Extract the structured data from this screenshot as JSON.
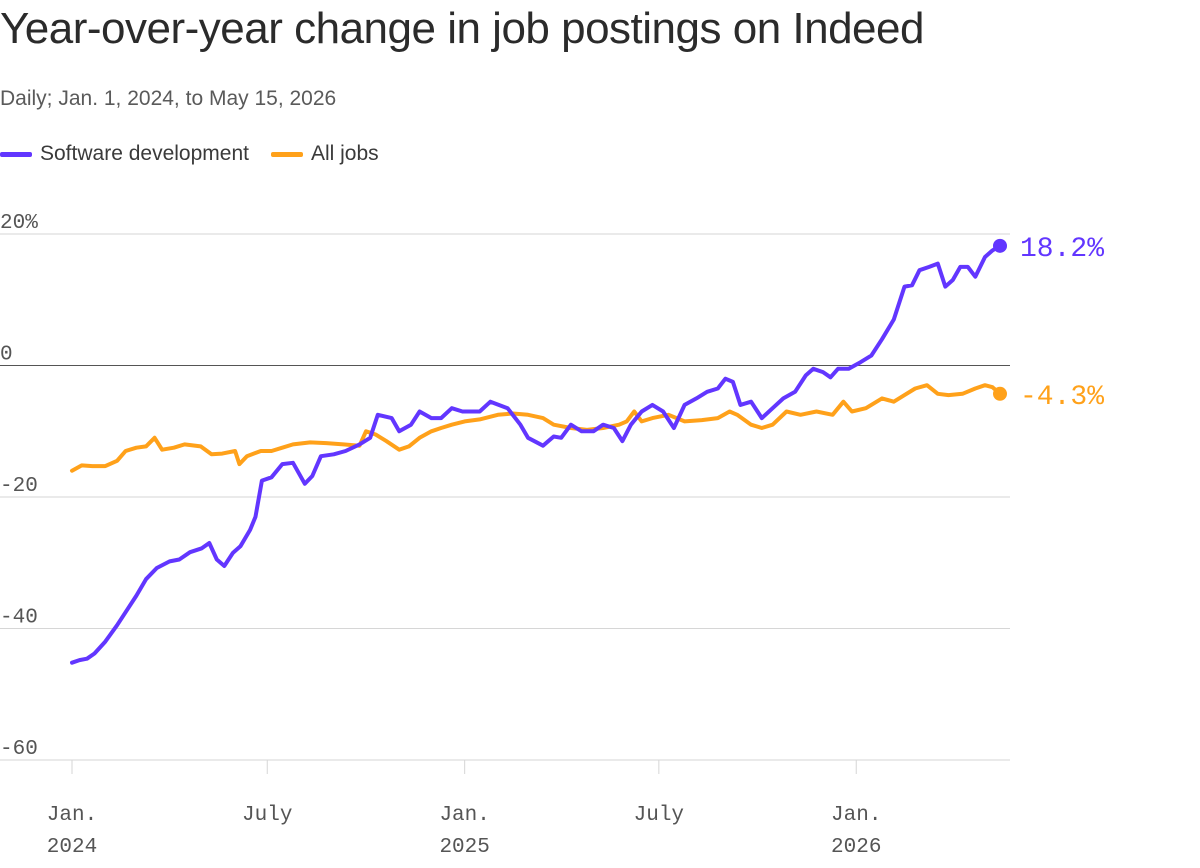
{
  "title": "Year-over-year change in job postings on Indeed",
  "subtitle": "Daily; Jan. 1, 2024, to May 15, 2026",
  "colors": {
    "software": "#6236ff",
    "all": "#ffa11a",
    "grid": "#d6d6d6",
    "zero": "#555555"
  },
  "chart_data": {
    "type": "line",
    "xlabel": "",
    "ylabel": "",
    "ylim": [
      -60,
      20
    ],
    "xlim": [
      "2024-01-01",
      "2026-05-15"
    ],
    "grid": true,
    "legend_position": "top-left",
    "y_ticks": [
      {
        "value": 20,
        "label": "20%"
      },
      {
        "value": 0,
        "label": "0"
      },
      {
        "value": -20,
        "label": "-20"
      },
      {
        "value": -40,
        "label": "-40"
      },
      {
        "value": -60,
        "label": "-60"
      }
    ],
    "x_ticks": [
      {
        "date": "2024-01-01",
        "line1": "Jan.",
        "line2": "2024"
      },
      {
        "date": "2024-07-01",
        "line1": "July",
        "line2": ""
      },
      {
        "date": "2025-01-01",
        "line1": "Jan.",
        "line2": "2025"
      },
      {
        "date": "2025-07-01",
        "line1": "July",
        "line2": ""
      },
      {
        "date": "2026-01-01",
        "line1": "Jan.",
        "line2": "2026"
      }
    ],
    "series": [
      {
        "name": "Software development",
        "end_label": "18.2%",
        "points": [
          [
            "2024-01-01",
            -45.2
          ],
          [
            "2024-01-08",
            -44.8
          ],
          [
            "2024-01-15",
            -44.6
          ],
          [
            "2024-01-22",
            -43.8
          ],
          [
            "2024-02-01",
            -42.0
          ],
          [
            "2024-02-12",
            -39.5
          ],
          [
            "2024-02-22",
            -37.0
          ],
          [
            "2024-03-01",
            -35.0
          ],
          [
            "2024-03-10",
            -32.5
          ],
          [
            "2024-03-20",
            -30.8
          ],
          [
            "2024-04-01",
            -29.8
          ],
          [
            "2024-04-10",
            -29.5
          ],
          [
            "2024-04-20",
            -28.4
          ],
          [
            "2024-05-01",
            -27.8
          ],
          [
            "2024-05-08",
            -27.0
          ],
          [
            "2024-05-15",
            -29.5
          ],
          [
            "2024-05-22",
            -30.5
          ],
          [
            "2024-05-30",
            -28.5
          ],
          [
            "2024-06-06",
            -27.5
          ],
          [
            "2024-06-15",
            -25.0
          ],
          [
            "2024-06-20",
            -23.0
          ],
          [
            "2024-06-26",
            -17.5
          ],
          [
            "2024-07-05",
            -17.0
          ],
          [
            "2024-07-15",
            -15.0
          ],
          [
            "2024-07-25",
            -14.8
          ],
          [
            "2024-08-05",
            -18.0
          ],
          [
            "2024-08-12",
            -16.8
          ],
          [
            "2024-08-20",
            -13.8
          ],
          [
            "2024-09-01",
            -13.5
          ],
          [
            "2024-09-12",
            -13.0
          ],
          [
            "2024-09-25",
            -12.0
          ],
          [
            "2024-10-05",
            -11.0
          ],
          [
            "2024-10-12",
            -7.5
          ],
          [
            "2024-10-25",
            -8.0
          ],
          [
            "2024-11-01",
            -10.0
          ],
          [
            "2024-11-12",
            -9.0
          ],
          [
            "2024-11-20",
            -7.0
          ],
          [
            "2024-12-01",
            -8.0
          ],
          [
            "2024-12-10",
            -8.0
          ],
          [
            "2024-12-20",
            -6.5
          ],
          [
            "2024-12-30",
            -7.0
          ],
          [
            "2025-01-15",
            -7.0
          ],
          [
            "2025-01-25",
            -5.5
          ],
          [
            "2025-02-10",
            -6.5
          ],
          [
            "2025-02-22",
            -9.0
          ],
          [
            "2025-03-01",
            -11.0
          ],
          [
            "2025-03-15",
            -12.2
          ],
          [
            "2025-03-25",
            -10.8
          ],
          [
            "2025-04-01",
            -11.0
          ],
          [
            "2025-04-10",
            -9.0
          ],
          [
            "2025-04-20",
            -10.0
          ],
          [
            "2025-05-01",
            -10.0
          ],
          [
            "2025-05-10",
            -9.0
          ],
          [
            "2025-05-20",
            -9.5
          ],
          [
            "2025-05-28",
            -11.5
          ],
          [
            "2025-06-05",
            -9.0
          ],
          [
            "2025-06-15",
            -7.0
          ],
          [
            "2025-06-25",
            -6.0
          ],
          [
            "2025-07-05",
            -7.0
          ],
          [
            "2025-07-15",
            -9.5
          ],
          [
            "2025-07-25",
            -6.0
          ],
          [
            "2025-08-05",
            -5.0
          ],
          [
            "2025-08-15",
            -4.0
          ],
          [
            "2025-08-25",
            -3.5
          ],
          [
            "2025-09-01",
            -2.0
          ],
          [
            "2025-09-08",
            -2.5
          ],
          [
            "2025-09-15",
            -6.0
          ],
          [
            "2025-09-25",
            -5.5
          ],
          [
            "2025-10-05",
            -8.0
          ],
          [
            "2025-10-15",
            -6.5
          ],
          [
            "2025-10-25",
            -5.0
          ],
          [
            "2025-11-05",
            -4.0
          ],
          [
            "2025-11-15",
            -1.5
          ],
          [
            "2025-11-22",
            -0.5
          ],
          [
            "2025-12-01",
            -1.0
          ],
          [
            "2025-12-08",
            -1.8
          ],
          [
            "2025-12-15",
            -0.5
          ],
          [
            "2025-12-25",
            -0.5
          ],
          [
            "2026-01-05",
            0.5
          ],
          [
            "2026-01-15",
            1.5
          ],
          [
            "2026-01-25",
            4.0
          ],
          [
            "2026-02-05",
            7.0
          ],
          [
            "2026-02-15",
            12.0
          ],
          [
            "2026-02-22",
            12.2
          ],
          [
            "2026-03-01",
            14.5
          ],
          [
            "2026-03-10",
            15.0
          ],
          [
            "2026-03-18",
            15.5
          ],
          [
            "2026-03-25",
            12.0
          ],
          [
            "2026-04-01",
            13.0
          ],
          [
            "2026-04-08",
            15.0
          ],
          [
            "2026-04-15",
            15.0
          ],
          [
            "2026-04-22",
            13.5
          ],
          [
            "2026-05-01",
            16.5
          ],
          [
            "2026-05-08",
            17.5
          ],
          [
            "2026-05-15",
            18.2
          ]
        ]
      },
      {
        "name": "All jobs",
        "end_label": "-4.3%",
        "points": [
          [
            "2024-01-01",
            -16.0
          ],
          [
            "2024-01-10",
            -15.2
          ],
          [
            "2024-01-20",
            -15.3
          ],
          [
            "2024-02-01",
            -15.3
          ],
          [
            "2024-02-12",
            -14.5
          ],
          [
            "2024-02-20",
            -13.0
          ],
          [
            "2024-03-01",
            -12.5
          ],
          [
            "2024-03-10",
            -12.3
          ],
          [
            "2024-03-18",
            -11.0
          ],
          [
            "2024-03-25",
            -12.8
          ],
          [
            "2024-04-05",
            -12.5
          ],
          [
            "2024-04-15",
            -12.0
          ],
          [
            "2024-04-30",
            -12.3
          ],
          [
            "2024-05-10",
            -13.5
          ],
          [
            "2024-05-20",
            -13.4
          ],
          [
            "2024-06-01",
            -13.0
          ],
          [
            "2024-06-05",
            -15.0
          ],
          [
            "2024-06-12",
            -13.8
          ],
          [
            "2024-06-25",
            -13.0
          ],
          [
            "2024-07-05",
            -13.0
          ],
          [
            "2024-07-15",
            -12.5
          ],
          [
            "2024-07-25",
            -12.0
          ],
          [
            "2024-08-10",
            -11.7
          ],
          [
            "2024-08-25",
            -11.8
          ],
          [
            "2024-09-10",
            -12.0
          ],
          [
            "2024-09-25",
            -12.2
          ],
          [
            "2024-10-01",
            -10.0
          ],
          [
            "2024-10-10",
            -10.5
          ],
          [
            "2024-10-20",
            -11.5
          ],
          [
            "2024-11-01",
            -12.8
          ],
          [
            "2024-11-10",
            -12.3
          ],
          [
            "2024-11-20",
            -11.0
          ],
          [
            "2024-12-01",
            -10.0
          ],
          [
            "2024-12-10",
            -9.5
          ],
          [
            "2024-12-20",
            -9.0
          ],
          [
            "2025-01-01",
            -8.5
          ],
          [
            "2025-01-15",
            -8.2
          ],
          [
            "2025-02-01",
            -7.5
          ],
          [
            "2025-02-15",
            -7.3
          ],
          [
            "2025-03-01",
            -7.5
          ],
          [
            "2025-03-15",
            -8.0
          ],
          [
            "2025-03-25",
            -9.0
          ],
          [
            "2025-04-10",
            -9.5
          ],
          [
            "2025-04-25",
            -9.8
          ],
          [
            "2025-05-10",
            -9.5
          ],
          [
            "2025-05-25",
            -9.0
          ],
          [
            "2025-06-01",
            -8.5
          ],
          [
            "2025-06-08",
            -7.0
          ],
          [
            "2025-06-15",
            -8.5
          ],
          [
            "2025-06-25",
            -8.0
          ],
          [
            "2025-07-10",
            -7.5
          ],
          [
            "2025-07-25",
            -8.5
          ],
          [
            "2025-08-10",
            -8.3
          ],
          [
            "2025-08-25",
            -8.0
          ],
          [
            "2025-09-05",
            -7.0
          ],
          [
            "2025-09-12",
            -7.5
          ],
          [
            "2025-09-25",
            -9.0
          ],
          [
            "2025-10-05",
            -9.5
          ],
          [
            "2025-10-15",
            -9.0
          ],
          [
            "2025-10-28",
            -7.0
          ],
          [
            "2025-11-10",
            -7.5
          ],
          [
            "2025-11-25",
            -7.0
          ],
          [
            "2025-12-10",
            -7.5
          ],
          [
            "2025-12-20",
            -5.5
          ],
          [
            "2025-12-28",
            -7.0
          ],
          [
            "2026-01-10",
            -6.5
          ],
          [
            "2026-01-25",
            -5.0
          ],
          [
            "2026-02-05",
            -5.5
          ],
          [
            "2026-02-15",
            -4.5
          ],
          [
            "2026-02-25",
            -3.5
          ],
          [
            "2026-03-08",
            -3.0
          ],
          [
            "2026-03-18",
            -4.3
          ],
          [
            "2026-03-28",
            -4.5
          ],
          [
            "2026-04-10",
            -4.3
          ],
          [
            "2026-04-22",
            -3.5
          ],
          [
            "2026-05-01",
            -3.0
          ],
          [
            "2026-05-08",
            -3.3
          ],
          [
            "2026-05-15",
            -4.3
          ]
        ]
      }
    ]
  }
}
